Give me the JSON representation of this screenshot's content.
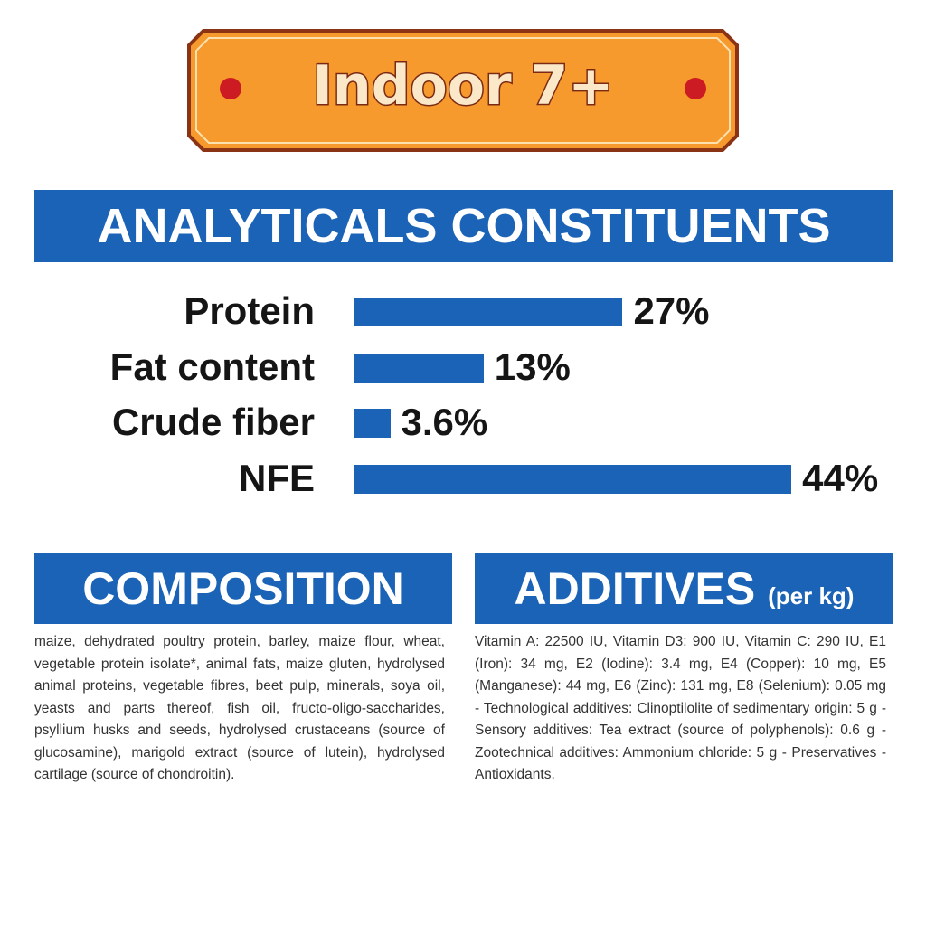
{
  "header": {
    "title": "Indoor 7+"
  },
  "chart_data": {
    "type": "bar",
    "title": "ANALYTICALS CONSTITUENTS",
    "categories": [
      "Protein",
      "Fat content",
      "Crude fiber",
      "NFE"
    ],
    "values": [
      27,
      13,
      3.6,
      44
    ],
    "value_labels": [
      "27%",
      "13%",
      "3.6%",
      "44%"
    ],
    "color": "#1b63b6",
    "orientation": "horizontal"
  },
  "composition": {
    "title": "COMPOSITION",
    "text": "maize, dehydrated poultry protein, barley, maize flour, wheat, vegetable protein isolate*, animal fats, maize gluten, hydrolysed animal proteins, vegetable fibres, beet pulp, minerals, soya oil, yeasts and parts thereof, fish oil, fructo-oligo-saccharides, psyllium husks and seeds, hydrolysed crustaceans (source of glucosamine), marigold extract (source of lutein), hydrolysed cartilage (source of chondroitin)."
  },
  "additives": {
    "title": "ADDITIVES",
    "unit": "(per kg)",
    "text": "Vitamin A: 22500 IU, Vitamin D3: 900 IU, Vitamin C: 290 IU, E1 (Iron): 34 mg, E2 (Iodine): 3.4 mg, E4 (Copper): 10 mg, E5 (Manganese): 44 mg, E6 (Zinc): 131 mg, E8 (Selenium): 0.05 mg - Technological additives: Clinoptilolite of sedimentary origin: 5 g - Sensory additives: Tea extract (source of polyphenols): 0.6 g - Zootechnical additives: Ammonium chloride: 5 g - Preservatives - Antioxidants."
  }
}
